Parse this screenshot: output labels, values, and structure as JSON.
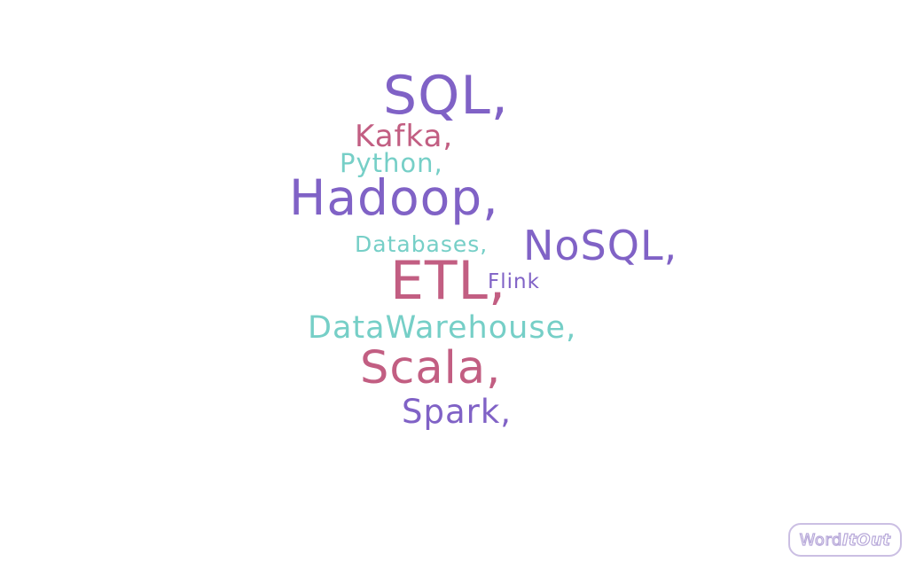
{
  "colors": {
    "purple": "#8062c6",
    "pink": "#c25e82",
    "teal": "#76cfc7",
    "logo_outline": "#b7a8d9"
  },
  "words": [
    {
      "text": "SQL,",
      "color": "purple"
    },
    {
      "text": "Kafka,",
      "color": "pink"
    },
    {
      "text": "Python,",
      "color": "teal"
    },
    {
      "text": "Hadoop,",
      "color": "purple"
    },
    {
      "text": "Databases,",
      "color": "teal"
    },
    {
      "text": "NoSQL,",
      "color": "purple"
    },
    {
      "text": "ETL,",
      "color": "pink"
    },
    {
      "text": "Flink",
      "color": "purple"
    },
    {
      "text": "DataWarehouse,",
      "color": "teal"
    },
    {
      "text": "Scala,",
      "color": "pink"
    },
    {
      "text": "Spark,",
      "color": "purple"
    }
  ],
  "logo": {
    "part1": "Word",
    "part2": "ItOut"
  }
}
